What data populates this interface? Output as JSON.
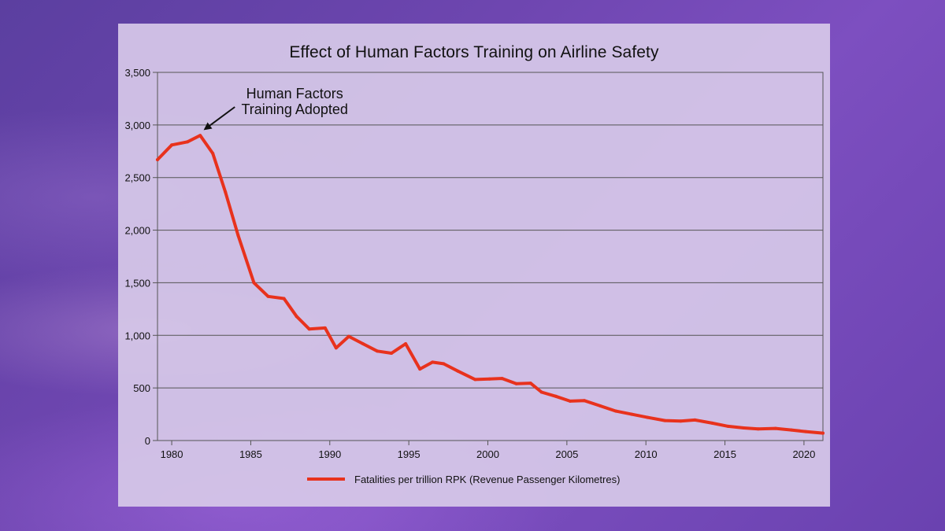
{
  "chart_data": {
    "type": "line",
    "title": "Effect of Human Factors Training on Airline Safety",
    "xlabel": "",
    "ylabel": "",
    "xlim": [
      1979.1,
      2021.2
    ],
    "ylim": [
      0,
      3500
    ],
    "x_ticks": [
      "1980",
      "1985",
      "1990",
      "1995",
      "2000",
      "2005",
      "2010",
      "2015",
      "2020"
    ],
    "y_ticks": [
      "0",
      "500",
      "1,000",
      "1,500",
      "2,000",
      "2,500",
      "3,000",
      "3,500"
    ],
    "grid": "horizontal",
    "legend_position": "bottom",
    "annotation": {
      "line1": "Human Factors",
      "line2": "Training Adopted",
      "x": 1981.8,
      "y": 2900
    },
    "series": [
      {
        "name": "Fatalities per trillion RPK (Revenue Passenger Kilometres)",
        "color": "#e8321d",
        "x": [
          1979.1,
          1980,
          1981,
          1981.8,
          1982.6,
          1983.4,
          1984.2,
          1985.2,
          1986.1,
          1987.1,
          1987.9,
          1988.7,
          1989.7,
          1990.4,
          1991.2,
          1992.1,
          1993,
          1993.9,
          1994.8,
          1995.7,
          1996.5,
          1997.2,
          1998.1,
          1999.2,
          2000.1,
          2000.9,
          2001.8,
          2002.7,
          2003.4,
          2004.3,
          2005.2,
          2006.1,
          2007.1,
          2008.1,
          2009.1,
          2010.1,
          2011.2,
          2012.2,
          2013.1,
          2014.2,
          2015.2,
          2016.2,
          2017.1,
          2018.2,
          2019.2,
          2020.1,
          2021.2
        ],
        "values": [
          2670,
          2810,
          2840,
          2900,
          2730,
          2360,
          1950,
          1500,
          1370,
          1350,
          1180,
          1060,
          1070,
          880,
          990,
          920,
          850,
          830,
          920,
          680,
          745,
          730,
          660,
          580,
          585,
          590,
          540,
          545,
          460,
          420,
          375,
          380,
          330,
          280,
          250,
          220,
          190,
          185,
          195,
          165,
          135,
          120,
          110,
          115,
          100,
          85,
          70
        ]
      }
    ]
  }
}
